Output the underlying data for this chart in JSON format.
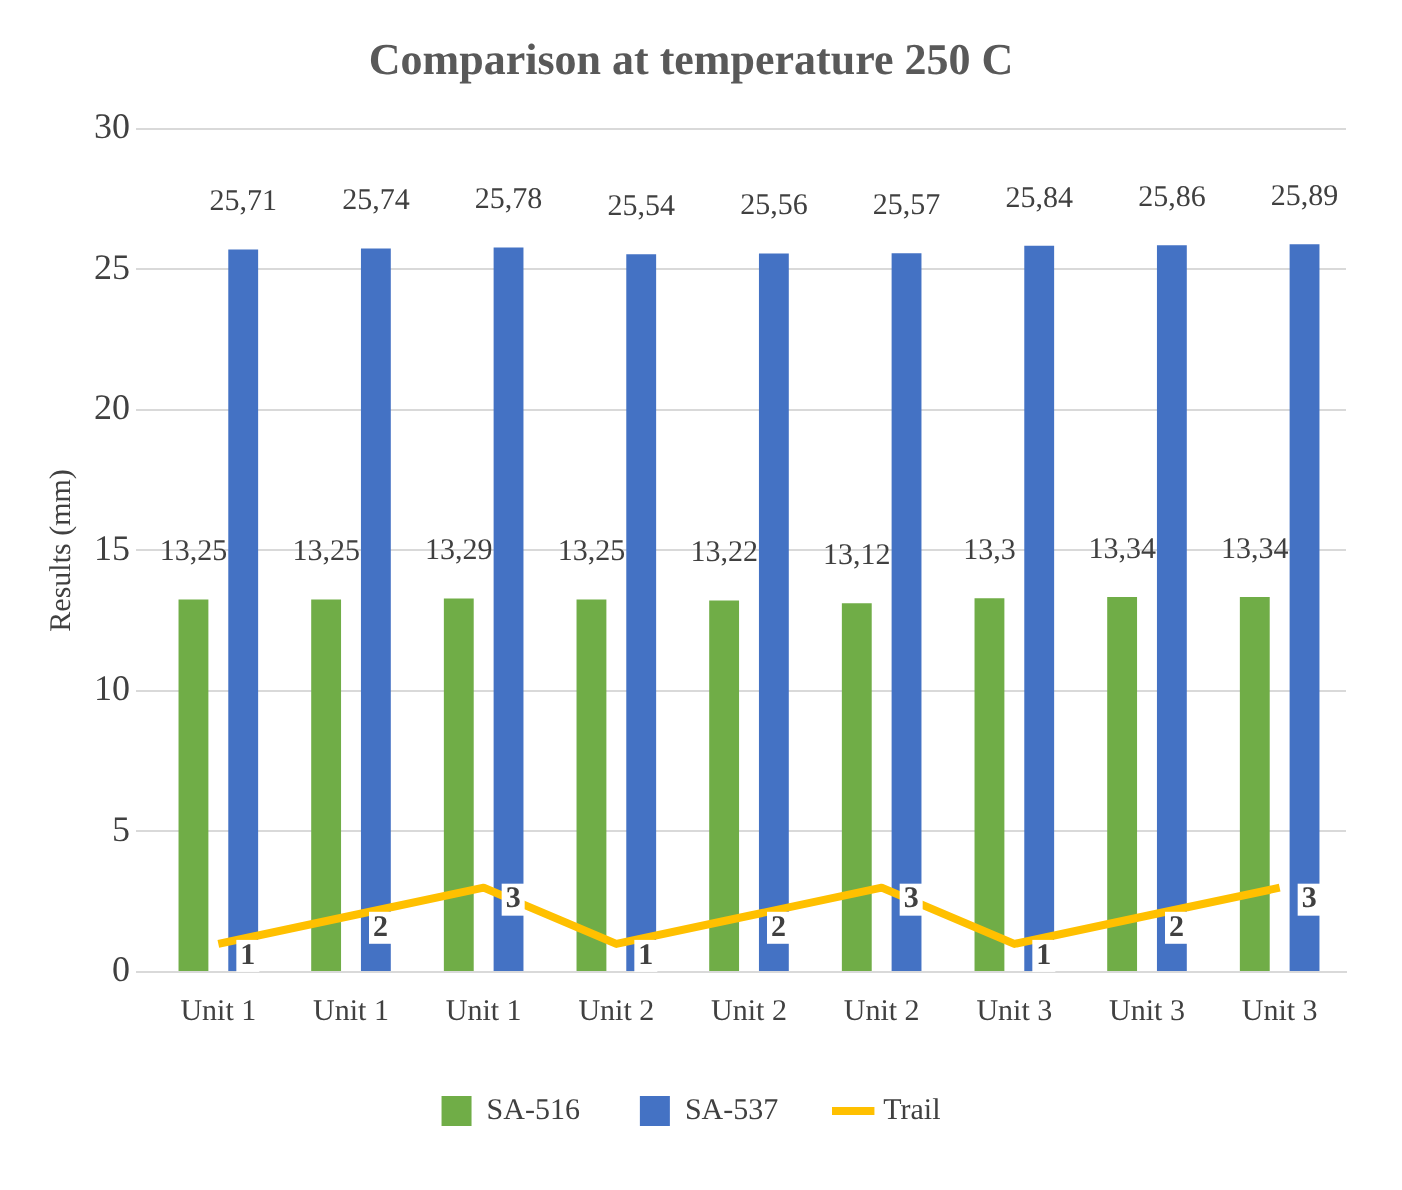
{
  "chart_data": {
    "type": "bar",
    "title": "Comparison at temperature 250 C",
    "ylabel": "Results (mm)",
    "categories": [
      "Unit 1",
      "Unit 1",
      "Unit 1",
      "Unit 2",
      "Unit 2",
      "Unit 2",
      "Unit 3",
      "Unit 3",
      "Unit 3"
    ],
    "series": [
      {
        "name": "SA-516",
        "color": "#70ad47",
        "values": [
          13.25,
          13.25,
          13.29,
          13.25,
          13.22,
          13.12,
          13.3,
          13.34,
          13.34
        ],
        "value_labels": [
          "13,25",
          "13,25",
          "13,29",
          "13,25",
          "13,22",
          "13,12",
          "13,3",
          "13,34",
          "13,34"
        ]
      },
      {
        "name": "SA-537",
        "color": "#4472c4",
        "values": [
          25.71,
          25.74,
          25.78,
          25.54,
          25.56,
          25.57,
          25.84,
          25.86,
          25.89
        ],
        "value_labels": [
          "25,71",
          "25,74",
          "25,78",
          "25,54",
          "25,56",
          "25,57",
          "25,84",
          "25,86",
          "25,89"
        ]
      },
      {
        "name": "Trail",
        "type": "line",
        "color": "#ffc000",
        "values": [
          1,
          2,
          3,
          1,
          2,
          3,
          1,
          2,
          3
        ],
        "value_labels": [
          "1",
          "2",
          "3",
          "1",
          "2",
          "3",
          "1",
          "2",
          "3"
        ]
      }
    ],
    "ylim": [
      0,
      30
    ],
    "yticks": [
      0,
      5,
      10,
      15,
      20,
      25,
      30
    ],
    "grid": "y",
    "legend": "bottom",
    "marker": "none",
    "line_style": "solid"
  }
}
